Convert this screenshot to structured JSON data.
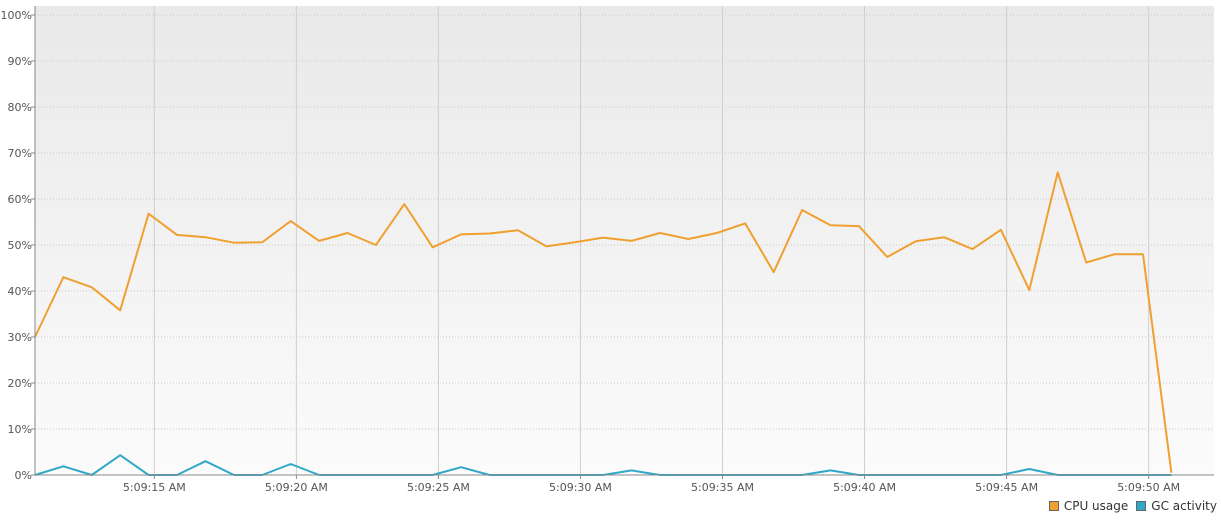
{
  "chart_data": {
    "type": "line",
    "title": "",
    "xlabel": "",
    "ylabel": "",
    "ylim": [
      0,
      100
    ],
    "y_ticks": [
      "0%",
      "10%",
      "20%",
      "30%",
      "40%",
      "50%",
      "60%",
      "70%",
      "80%",
      "90%",
      "100%"
    ],
    "x_ticks": [
      "5:09:15 AM",
      "5:09:20 AM",
      "5:09:25 AM",
      "5:09:30 AM",
      "5:09:35 AM",
      "5:09:40 AM",
      "5:09:45 AM",
      "5:09:50 AM"
    ],
    "x_range_seconds": [
      10.8,
      52.3
    ],
    "x_tick_seconds": [
      15,
      20,
      25,
      30,
      35,
      40,
      45,
      50
    ],
    "grid": true,
    "legend_position": "bottom-right",
    "series": [
      {
        "name": "CPU usage",
        "color": "#f0a030",
        "x": [
          10.8,
          11.8,
          12.8,
          13.8,
          14.8,
          15.8,
          16.8,
          17.8,
          18.8,
          19.8,
          20.8,
          21.8,
          22.8,
          23.8,
          24.8,
          25.8,
          26.8,
          27.8,
          28.8,
          29.8,
          30.8,
          31.8,
          32.8,
          33.8,
          34.8,
          35.8,
          36.8,
          37.8,
          38.8,
          39.8,
          40.8,
          41.8,
          42.8,
          43.8,
          44.8,
          45.8,
          46.8,
          47.8,
          48.8,
          49.8,
          50.8,
          51.8,
          52.3
        ],
        "values": [
          30.0,
          43.0,
          40.8,
          35.8,
          56.8,
          52.2,
          51.7,
          50.5,
          50.6,
          55.2,
          50.9,
          52.6,
          50.0,
          58.9,
          49.5,
          52.3,
          52.5,
          53.2,
          49.7,
          50.6,
          51.6,
          50.9,
          52.6,
          51.3,
          52.6,
          54.7,
          44.1,
          57.6,
          54.3,
          54.1,
          47.4,
          50.8,
          51.7,
          49.1,
          53.3,
          40.2,
          65.8,
          46.2,
          48.0,
          48.0,
          0.5,
          null,
          null
        ]
      },
      {
        "name": "GC activity",
        "color": "#30a8c8",
        "x": [
          10.8,
          11.8,
          12.8,
          13.8,
          14.8,
          15.8,
          16.8,
          17.8,
          18.8,
          19.8,
          20.8,
          21.8,
          22.8,
          23.8,
          24.8,
          25.8,
          26.8,
          27.8,
          28.8,
          29.8,
          30.8,
          31.8,
          32.8,
          33.8,
          34.8,
          35.8,
          36.8,
          37.8,
          38.8,
          39.8,
          40.8,
          41.8,
          42.8,
          43.8,
          44.8,
          45.8,
          46.8,
          47.8,
          48.8,
          49.8,
          50.8
        ],
        "values": [
          0,
          1.9,
          0,
          4.3,
          0,
          0,
          3.0,
          0,
          0,
          2.4,
          0,
          0,
          0,
          0,
          0,
          1.7,
          0,
          0,
          0,
          0,
          0,
          1.0,
          0,
          0,
          0,
          0,
          0,
          0,
          1.0,
          0,
          0,
          0,
          0,
          0,
          0,
          1.3,
          0,
          0,
          0,
          0,
          0
        ]
      }
    ]
  }
}
